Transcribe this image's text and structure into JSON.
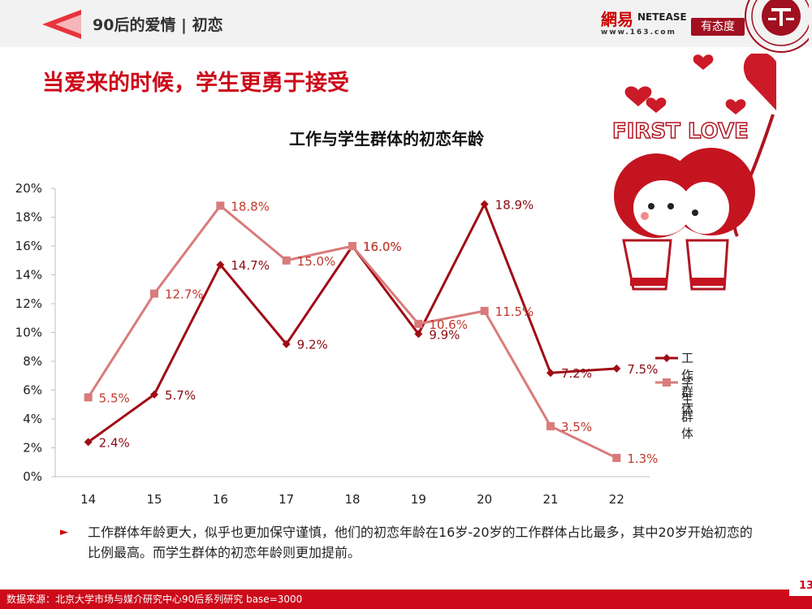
{
  "header": {
    "section_title": "90后的爱情 | 初恋",
    "headline": "当爱来的时候，学生更勇于接受"
  },
  "logos": {
    "netease_cn": "網易",
    "netease_en": "NETEASE",
    "netease_url": "www.163.com",
    "badge": "有态度"
  },
  "illustration": {
    "caption": "FIRST LOVE"
  },
  "chart_data": {
    "type": "line",
    "title": "工作与学生群体的初恋年龄",
    "x": [
      14,
      15,
      16,
      17,
      18,
      19,
      20,
      21,
      22
    ],
    "ylim": [
      0,
      20
    ],
    "yticks": [
      "0%",
      "2%",
      "4%",
      "6%",
      "8%",
      "10%",
      "12%",
      "14%",
      "16%",
      "18%",
      "20%"
    ],
    "series": [
      {
        "name": "工作群体",
        "color": "#a00c15",
        "marker": "diamond",
        "values": [
          2.4,
          5.7,
          14.7,
          9.2,
          16.0,
          9.9,
          18.9,
          7.2,
          7.5
        ],
        "labels": [
          "2.4%",
          "5.7%",
          "14.7%",
          "9.2%",
          "16.0%",
          "9.9%",
          "18.9%",
          "7.2%",
          "7.5%"
        ]
      },
      {
        "name": "学生群体",
        "color": "#d97b7b",
        "marker": "square",
        "values": [
          5.5,
          12.7,
          18.8,
          15.0,
          16.0,
          10.6,
          11.5,
          3.5,
          1.3
        ],
        "labels": [
          "5.5%",
          "12.7%",
          "18.8%",
          "15.0%",
          "16.0%",
          "10.6%",
          "11.5%",
          "3.5%",
          "1.3%"
        ]
      }
    ],
    "xlabel": "",
    "ylabel": "",
    "legend": "right"
  },
  "body": {
    "text": "工作群体年龄更大，似乎也更加保守谨慎，他们的初恋年龄在16岁-20岁的工作群体占比最多，其中20岁开始初恋的比例最高。而学生群体的初恋年龄则更加提前。"
  },
  "footer": {
    "source": "数据来源：北京大学市场与媒介研究中心90后系列研究 base=3000",
    "page": "13"
  }
}
